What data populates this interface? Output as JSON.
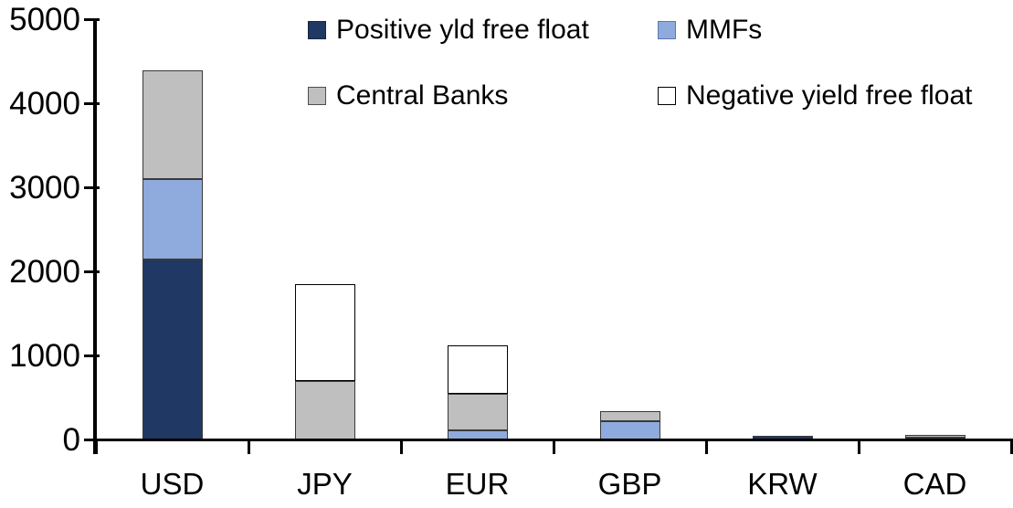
{
  "chart_data": {
    "type": "bar",
    "stacked": true,
    "title": "",
    "categories": [
      "USD",
      "JPY",
      "EUR",
      "GBP",
      "KRW",
      "CAD"
    ],
    "series": [
      {
        "name": "Positive yld free float",
        "color": "#1F3864",
        "border": "#17263F",
        "values": [
          2150,
          0,
          0,
          0,
          45,
          25
        ]
      },
      {
        "name": "MMFs",
        "color": "#8FAADC",
        "border": "#5B7AB0",
        "values": [
          950,
          0,
          110,
          220,
          0,
          0
        ]
      },
      {
        "name": "Central Banks",
        "color": "#BFBFBF",
        "border": "#4d4d4d",
        "values": [
          1300,
          700,
          440,
          120,
          0,
          35
        ]
      },
      {
        "name": "Negative yield free float",
        "color": "#FFFFFF",
        "border": "#000000",
        "values": [
          0,
          1150,
          580,
          0,
          0,
          0
        ]
      }
    ],
    "xlabel": "",
    "ylabel": "",
    "ylim": [
      0,
      5000
    ],
    "yticks": [
      "0",
      "1000",
      "2000",
      "3000",
      "4000",
      "5000"
    ],
    "grid": false,
    "legend_position": "top, two columns",
    "axis_color": "#000000"
  }
}
